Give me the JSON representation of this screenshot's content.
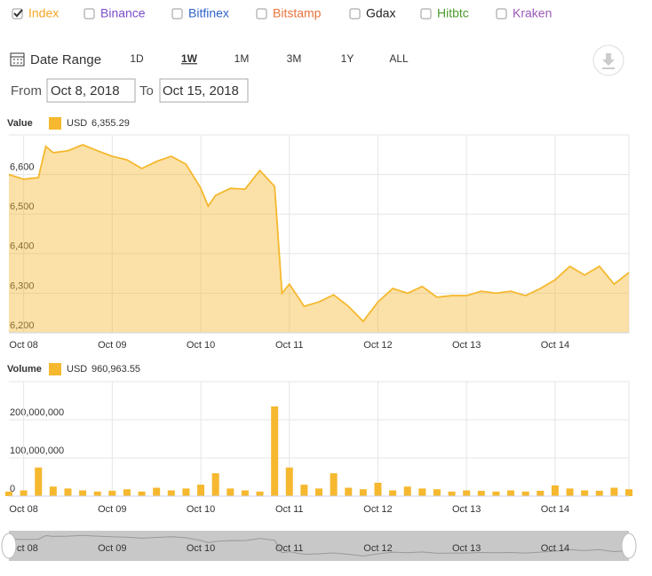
{
  "exchanges": [
    {
      "name": "Index",
      "color": "#f5a623",
      "checked": true
    },
    {
      "name": "Binance",
      "color": "#7b4fc9",
      "checked": false
    },
    {
      "name": "Bitfinex",
      "color": "#2f63c9",
      "checked": false
    },
    {
      "name": "Bitstamp",
      "color": "#e8743b",
      "checked": false
    },
    {
      "name": "Gdax",
      "color": "#222222",
      "checked": false
    },
    {
      "name": "Hitbtc",
      "color": "#4e9a2f",
      "checked": false
    },
    {
      "name": "Kraken",
      "color": "#9b59b6",
      "checked": false
    }
  ],
  "date_range": {
    "label": "Date Range",
    "buttons": [
      "1D",
      "1W",
      "1M",
      "3M",
      "1Y",
      "ALL"
    ],
    "selected": 1,
    "from_label": "From",
    "from": "Oct 8, 2018",
    "to_label": "To",
    "to": "Oct 15, 2018"
  },
  "chart_data": [
    {
      "type": "area",
      "title": "Value",
      "x": [
        -4,
        0,
        4,
        6,
        8,
        12,
        16,
        20,
        24,
        28,
        32,
        36,
        40,
        44,
        48,
        50,
        52,
        56,
        60,
        64,
        68,
        70,
        72,
        76,
        80,
        84,
        88,
        92,
        96,
        100,
        104,
        108,
        112,
        116,
        120,
        124,
        128,
        132,
        136,
        140,
        144,
        148,
        152,
        156,
        160,
        164
      ],
      "series": [
        {
          "name": "USD",
          "legend_value": "6,355.29",
          "color": "#f5b82e",
          "values": [
            6600,
            6588,
            6592,
            6671,
            6655,
            6660,
            6675,
            6660,
            6646,
            6637,
            6615,
            6633,
            6646,
            6626,
            6565,
            6520,
            6547,
            6565,
            6563,
            6610,
            6570,
            6300,
            6323,
            6267,
            6278,
            6296,
            6267,
            6229,
            6278,
            6312,
            6300,
            6317,
            6290,
            6294,
            6294,
            6305,
            6300,
            6305,
            6294,
            6312,
            6334,
            6368,
            6346,
            6368,
            6323,
            6352
          ]
        }
      ],
      "xlim": [
        -4,
        164
      ],
      "xticks": [
        {
          "value": 0,
          "label": "Oct 08"
        },
        {
          "value": 24,
          "label": "Oct 09"
        },
        {
          "value": 48,
          "label": "Oct 10"
        },
        {
          "value": 72,
          "label": "Oct 11"
        },
        {
          "value": 96,
          "label": "Oct 12"
        },
        {
          "value": 120,
          "label": "Oct 13"
        },
        {
          "value": 144,
          "label": "Oct 14"
        }
      ],
      "ylim": [
        6200,
        6700
      ],
      "yticks": [
        {
          "value": 6200,
          "label": "6,200"
        },
        {
          "value": 6300,
          "label": "6,300"
        },
        {
          "value": 6400,
          "label": "6,400"
        },
        {
          "value": 6500,
          "label": "6,500"
        },
        {
          "value": 6600,
          "label": "6,600"
        }
      ],
      "grid": true
    },
    {
      "type": "bar",
      "title": "Volume",
      "x": [
        -4,
        0,
        4,
        8,
        12,
        16,
        20,
        24,
        28,
        32,
        36,
        40,
        44,
        48,
        52,
        56,
        60,
        64,
        68,
        72,
        76,
        80,
        84,
        88,
        92,
        96,
        100,
        104,
        108,
        112,
        116,
        120,
        124,
        128,
        132,
        136,
        140,
        144,
        148,
        152,
        156,
        160,
        164
      ],
      "series": [
        {
          "name": "USD",
          "legend_value": "960,963.55",
          "color": "#f5b82e",
          "values": [
            12000000,
            15000000,
            75000000,
            25000000,
            20000000,
            15000000,
            12000000,
            14000000,
            18000000,
            12000000,
            22000000,
            15000000,
            20000000,
            30000000,
            60000000,
            20000000,
            15000000,
            12000000,
            235000000,
            75000000,
            30000000,
            20000000,
            60000000,
            22000000,
            18000000,
            35000000,
            15000000,
            25000000,
            20000000,
            18000000,
            12000000,
            15000000,
            14000000,
            12000000,
            15000000,
            12000000,
            14000000,
            28000000,
            20000000,
            15000000,
            14000000,
            22000000,
            18000000
          ]
        }
      ],
      "xlim": [
        -4,
        164
      ],
      "xticks": [
        {
          "value": 0,
          "label": "Oct 08"
        },
        {
          "value": 24,
          "label": "Oct 09"
        },
        {
          "value": 48,
          "label": "Oct 10"
        },
        {
          "value": 72,
          "label": "Oct 11"
        },
        {
          "value": 96,
          "label": "Oct 12"
        },
        {
          "value": 120,
          "label": "Oct 13"
        },
        {
          "value": 144,
          "label": "Oct 14"
        }
      ],
      "ylim": [
        0,
        300000000
      ],
      "yticks": [
        0,
        {
          "value": 100000000,
          "label": "100,000,000"
        },
        {
          "value": 200000000,
          "label": "200,000,000"
        }
      ],
      "grid": true
    }
  ]
}
